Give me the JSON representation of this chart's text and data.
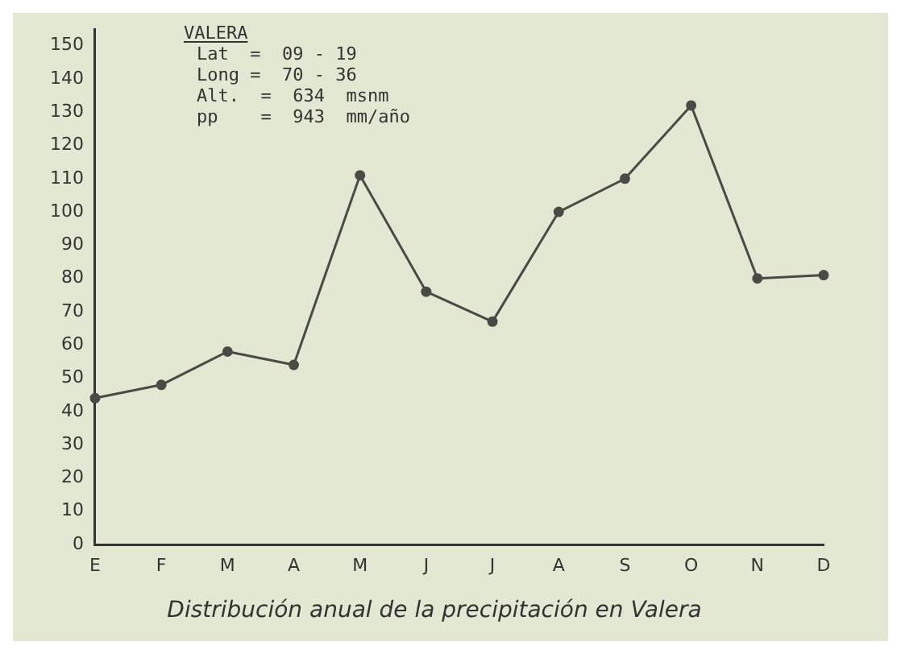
{
  "chart_data": {
    "type": "line",
    "title": "Distribución anual de la precipitación en Valera",
    "annotations": [
      "VALERA",
      "Lat  =  09 - 19",
      "Long =  70 - 36",
      "Alt.  =  634  msnm",
      "pp    =  943  mm/año"
    ],
    "categories": [
      "E",
      "F",
      "M",
      "A",
      "M",
      "J",
      "J",
      "A",
      "S",
      "O",
      "N",
      "D"
    ],
    "series": [
      {
        "color": "#4a4a46",
        "values": [
          44,
          48,
          58,
          54,
          111,
          76,
          67,
          100,
          110,
          132,
          80,
          81
        ]
      }
    ],
    "ylim": [
      0,
      155
    ],
    "yticks": [
      0,
      10,
      20,
      30,
      40,
      50,
      60,
      70,
      80,
      90,
      100,
      110,
      120,
      130,
      140,
      150
    ],
    "grid": false,
    "legend": false,
    "marker": "circle",
    "line_style": "solid"
  }
}
